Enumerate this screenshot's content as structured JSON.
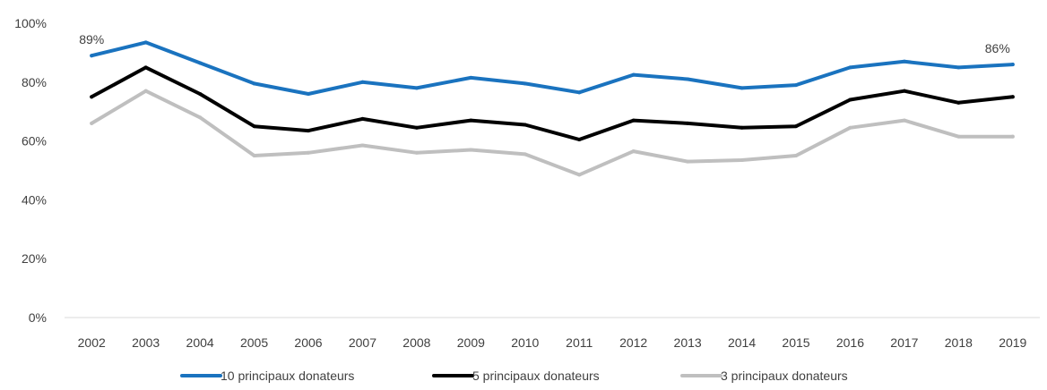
{
  "chart_data": {
    "type": "line",
    "title": "",
    "xlabel": "",
    "ylabel": "",
    "categories": [
      "2002",
      "2003",
      "2004",
      "2005",
      "2006",
      "2007",
      "2008",
      "2009",
      "2010",
      "2011",
      "2012",
      "2013",
      "2014",
      "2015",
      "2016",
      "2017",
      "2018",
      "2019"
    ],
    "ylim": [
      0,
      100
    ],
    "yticks": [
      0,
      20,
      40,
      60,
      80,
      100
    ],
    "ytick_labels": [
      "0%",
      "20%",
      "40%",
      "60%",
      "80%",
      "100%"
    ],
    "grid": false,
    "legend_position": "bottom",
    "series": [
      {
        "name": "10 principaux donateurs",
        "color": "#1a73bf",
        "values": [
          89,
          93.5,
          86.5,
          79.5,
          76,
          80,
          78,
          81.5,
          79.5,
          76.5,
          82.5,
          81,
          78,
          79,
          85,
          87,
          85,
          86
        ]
      },
      {
        "name": "5  principaux donateurs",
        "color": "#000000",
        "values": [
          75,
          85,
          76,
          65,
          63.5,
          67.5,
          64.5,
          67,
          65.5,
          60.5,
          67,
          66,
          64.5,
          65,
          74,
          77,
          73,
          75
        ]
      },
      {
        "name": "3 principaux donateurs",
        "color": "#bfbfbf",
        "values": [
          66,
          77,
          68,
          55,
          56,
          58.5,
          56,
          57,
          55.5,
          48.5,
          56.5,
          53,
          53.5,
          55,
          64.5,
          67,
          61.5,
          61.5
        ]
      }
    ],
    "annotations": [
      {
        "series": 0,
        "index": 0,
        "text": "89%"
      },
      {
        "series": 0,
        "index": 17,
        "text": "86%"
      }
    ]
  }
}
